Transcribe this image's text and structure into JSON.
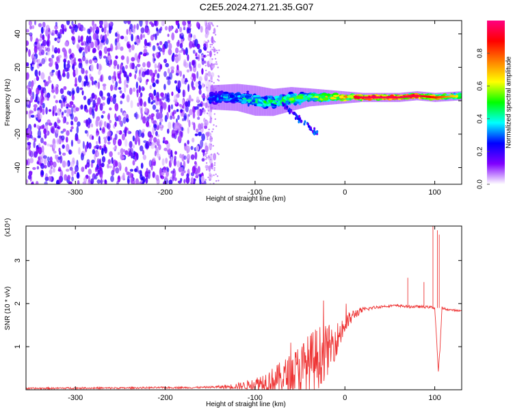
{
  "title": "C2E5.2024.271.21.35.G07",
  "chart_data": [
    {
      "type": "heatmap",
      "xlabel": "Height of straight line (km)",
      "ylabel": "Frequency (Hz)",
      "xlim": [
        -355,
        130
      ],
      "ylim": [
        -50,
        48
      ],
      "xticks": [
        -300,
        -200,
        -100,
        0,
        100
      ],
      "yticks": [
        -40,
        -20,
        0,
        20,
        40
      ],
      "colorbar": {
        "label": "Normalized spectral amplitude",
        "range": [
          0,
          1
        ],
        "ticks": [
          0.0,
          0.2,
          0.4,
          0.6,
          0.8
        ],
        "tick_labels": [
          "0.0",
          "0.2",
          "0.4",
          "0.6",
          "0.8"
        ],
        "colormap": [
          "#ffffff",
          "#8000ff",
          "#0000ff",
          "#00ffff",
          "#00ff00",
          "#ffff00",
          "#ff8000",
          "#ff0000",
          "#ff0080"
        ]
      },
      "noise_region": {
        "x_range": [
          -355,
          -155
        ],
        "y_range": [
          -50,
          48
        ],
        "level": 0.15
      },
      "signal_track": [
        {
          "x": -150,
          "y": 2,
          "spread": 8,
          "level": 0.35
        },
        {
          "x": -120,
          "y": 2,
          "spread": 9,
          "level": 0.4
        },
        {
          "x": -100,
          "y": 0,
          "spread": 10,
          "level": 0.45
        },
        {
          "x": -80,
          "y": -1,
          "spread": 9,
          "level": 0.5
        },
        {
          "x": -60,
          "y": 1,
          "spread": 8,
          "level": 0.55
        },
        {
          "x": -40,
          "y": 2,
          "spread": 6,
          "level": 0.6
        },
        {
          "x": -20,
          "y": 2,
          "spread": 5,
          "level": 0.7
        },
        {
          "x": 0,
          "y": 2,
          "spread": 4,
          "level": 0.85
        },
        {
          "x": 20,
          "y": 2,
          "spread": 3,
          "level": 0.95
        },
        {
          "x": 40,
          "y": 2,
          "spread": 3,
          "level": 0.97
        },
        {
          "x": 60,
          "y": 2,
          "spread": 3,
          "level": 0.95
        },
        {
          "x": 80,
          "y": 3,
          "spread": 3,
          "level": 0.95
        },
        {
          "x": 100,
          "y": 2,
          "spread": 3,
          "level": 0.85
        },
        {
          "x": 130,
          "y": 3,
          "spread": 3,
          "level": 0.6
        }
      ]
    },
    {
      "type": "line",
      "xlabel": "Height of straight line (km)",
      "ylabel": "SNR (10 * v/v)",
      "y_multiplier_label": "(x10⁴)",
      "xlim": [
        -355,
        130
      ],
      "ylim": [
        0,
        3.8
      ],
      "xticks": [
        -300,
        -200,
        -100,
        0,
        100
      ],
      "yticks": [
        1,
        2,
        3
      ],
      "color": "#ee3333",
      "series": [
        {
          "x": [
            -355,
            -300,
            -250,
            -200,
            -170,
            -150,
            -130,
            -110,
            -100,
            -90,
            -80,
            -70,
            -60,
            -50,
            -40,
            -30,
            -20,
            -10,
            0,
            10,
            20,
            30,
            40,
            50,
            60,
            70,
            80,
            90,
            95,
            100,
            102,
            104,
            106,
            108,
            110,
            115,
            120,
            130
          ],
          "y": [
            0.03,
            0.04,
            0.04,
            0.05,
            0.05,
            0.06,
            0.07,
            0.1,
            0.13,
            0.18,
            0.22,
            0.28,
            0.35,
            0.45,
            0.6,
            0.75,
            0.9,
            1.15,
            1.5,
            1.75,
            1.85,
            1.9,
            1.93,
            1.95,
            1.95,
            1.93,
            1.93,
            1.92,
            1.92,
            1.9,
            1.2,
            0.4,
            1.0,
            1.9,
            1.88,
            1.86,
            1.85,
            1.83
          ],
          "noise": [
            0.02,
            0.02,
            0.02,
            0.02,
            0.02,
            0.02,
            0.05,
            0.1,
            0.15,
            0.25,
            0.3,
            0.4,
            0.5,
            0.65,
            0.7,
            0.75,
            0.6,
            0.4,
            0.25,
            0.12,
            0.06,
            0.04,
            0.03,
            0.03,
            0.03,
            0.03,
            0.03,
            0.03,
            0.03,
            0.03,
            0.03,
            0.03,
            0.03,
            0.03,
            0.03,
            0.02,
            0.02,
            0.02
          ]
        }
      ]
    }
  ]
}
